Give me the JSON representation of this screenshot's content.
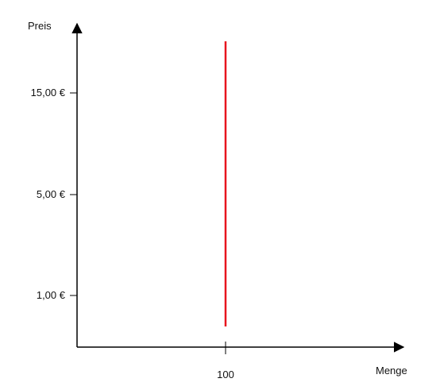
{
  "chart_data": {
    "type": "line",
    "xlabel": "Menge",
    "ylabel": "Preis",
    "x_ticks": [
      {
        "value": 100,
        "label": "100"
      }
    ],
    "y_ticks": [
      {
        "value": 15,
        "label": "15,00 €"
      },
      {
        "value": 5,
        "label": "5,00 €"
      },
      {
        "value": 1,
        "label": "1,00 €"
      }
    ],
    "series": [
      {
        "color": "#e8141e",
        "points": [
          {
            "x": 100,
            "y": 0.4
          },
          {
            "x": 100,
            "y": 30
          }
        ]
      }
    ]
  }
}
